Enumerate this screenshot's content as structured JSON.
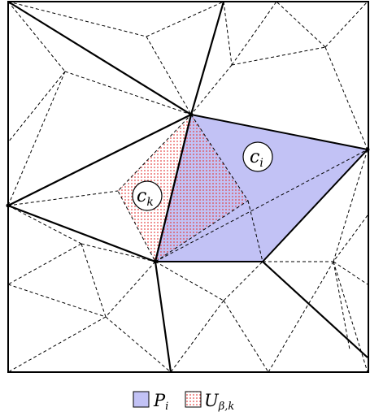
{
  "colors": {
    "region_fill": "#c2c2f5",
    "region_stroke": "#000000",
    "dot_pattern": "#e23b3b",
    "solid_edge": "#000000",
    "dashed_edge": "#000000",
    "node_fill": "#ffffff"
  },
  "labels": {
    "ci_base": "c",
    "ci_sub": "i",
    "ck_base": "c",
    "ck_sub": "k"
  },
  "legend": {
    "items": [
      {
        "base": "P",
        "sub": "i",
        "swatch": "solid-fill"
      },
      {
        "base": "U",
        "sub": "β,k",
        "swatch": "dotted-fill"
      }
    ]
  }
}
